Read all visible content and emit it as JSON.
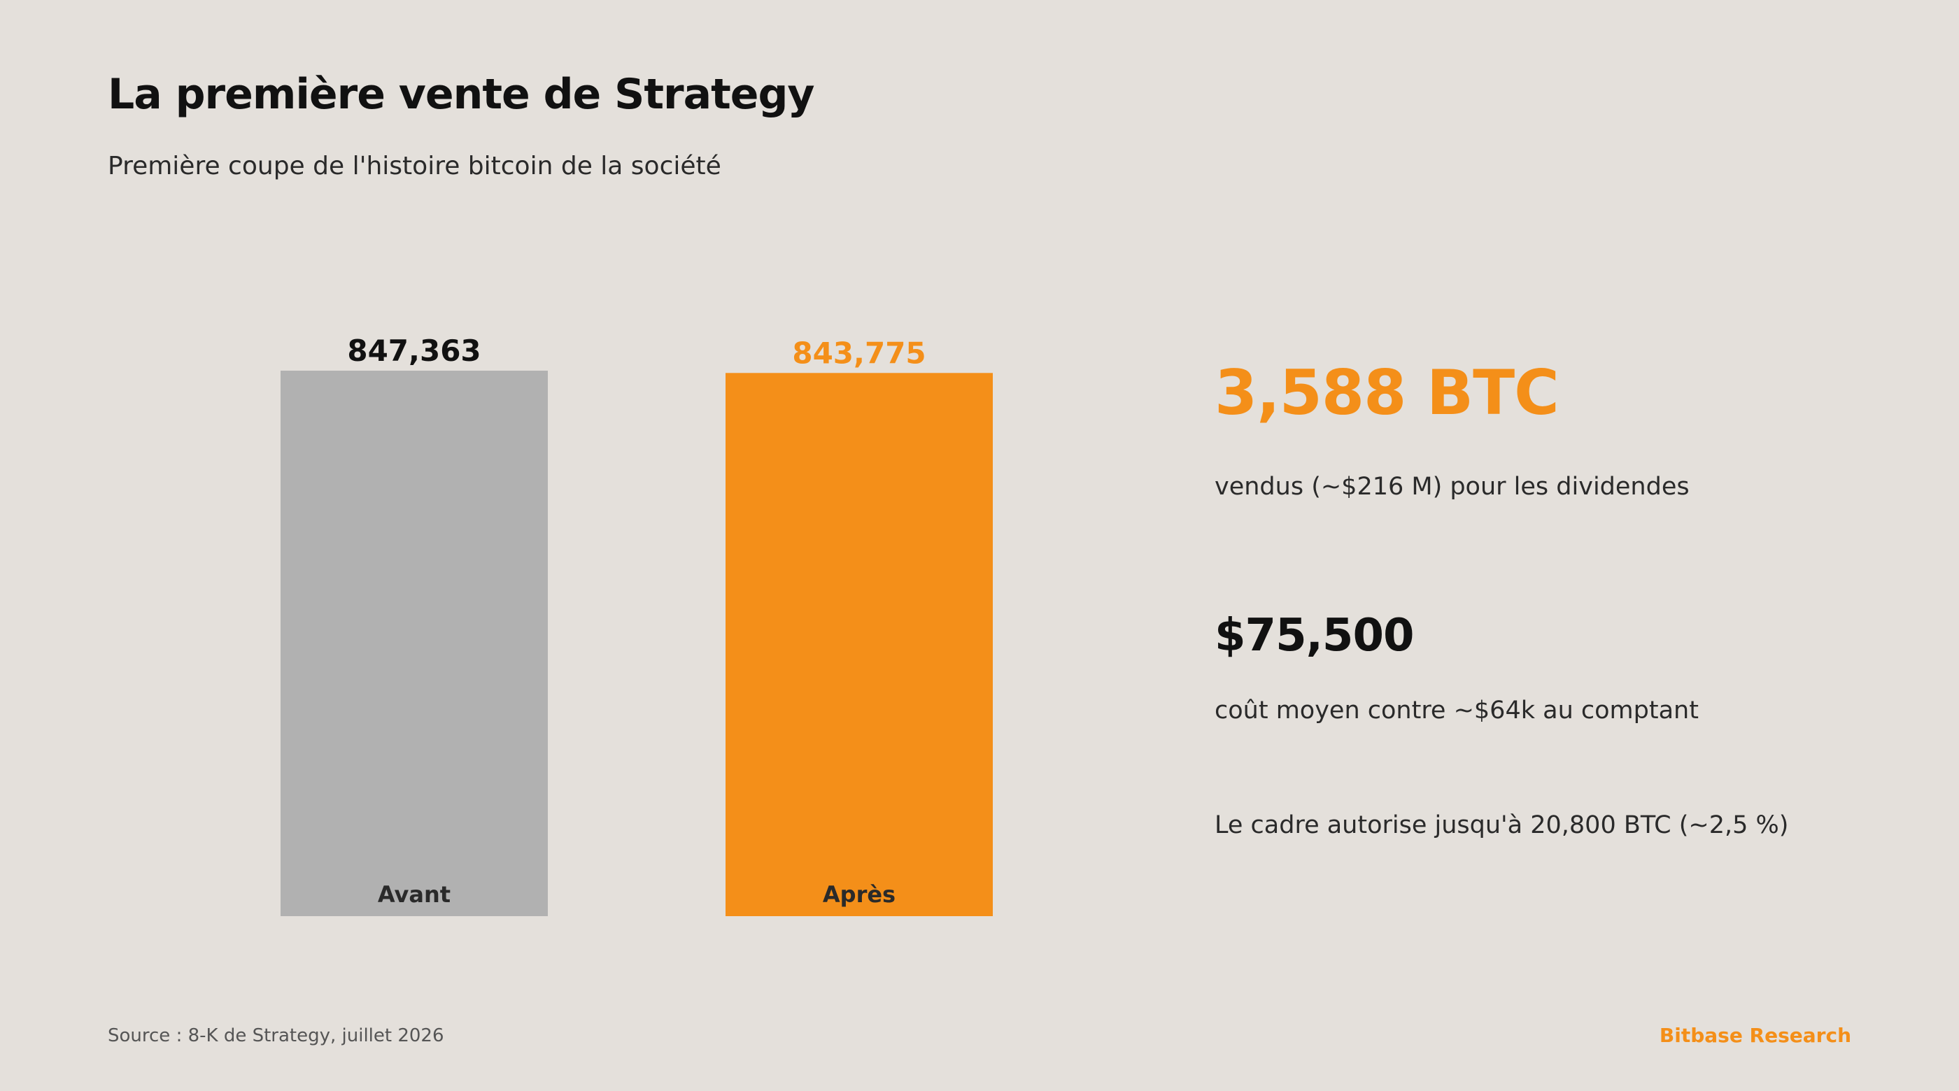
{
  "header": {
    "title": "La première vente de Strategy",
    "subtitle": "Première coupe de l'histoire bitcoin de la société"
  },
  "chart_data": {
    "type": "bar",
    "categories": [
      "Avant",
      "Après"
    ],
    "values": [
      847363,
      843775
    ],
    "value_labels": [
      "847,363",
      "843,775"
    ],
    "colors": [
      "#b1b1b1",
      "#f48f19"
    ],
    "label_colors": [
      "#111111",
      "#f48f19"
    ],
    "title": "",
    "xlabel": "",
    "ylabel": "",
    "grid": false
  },
  "stats": {
    "primary_value": "3,588 BTC",
    "primary_text": "vendus (~$216 M) pour les dividendes",
    "secondary_value": "$75,500",
    "secondary_text": "coût moyen contre ~$64k au comptant",
    "note": "Le cadre autorise jusqu'à 20,800 BTC (~2,5 %)"
  },
  "footer": {
    "source": "Source : 8-K de Strategy, juillet 2026",
    "brand": "Bitbase Research"
  },
  "theme": {
    "background": "#e4e0db",
    "accent": "#f48f19",
    "neutral_bar": "#b1b1b1"
  }
}
